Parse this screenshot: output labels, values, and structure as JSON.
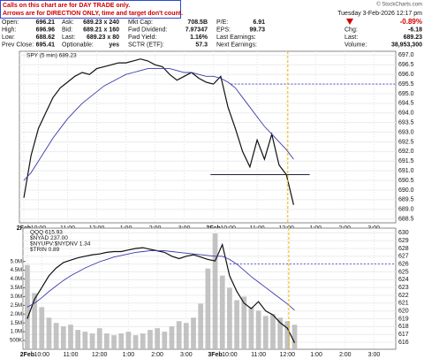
{
  "notice": [
    "Calls on this chart are for DAY TRADE only.",
    "Arrows are for DIRECTION ONLY, time and target don't count."
  ],
  "header": {
    "copyright": "© StockCharts.com",
    "datetime": "Tuesday 3-Feb-2026 12:17 pm",
    "change_pct": "-0.89%",
    "rows": [
      [
        [
          "Open:",
          "696.21"
        ],
        [
          "Ask:",
          "689.23 x 240"
        ],
        [
          "Mkt Cap:",
          "708.5B"
        ],
        [
          "P/E:",
          "6.91"
        ]
      ],
      [
        [
          "High:",
          "696.96"
        ],
        [
          "Bid:",
          "689.21 x 160"
        ],
        [
          "Fwd Dividend:",
          "7.97347"
        ],
        [
          "EPS:",
          "99.73"
        ],
        [
          "Chg:",
          "-6.18"
        ]
      ],
      [
        [
          "Low:",
          "688.62"
        ],
        [
          "Last:",
          "689.23 x 80"
        ],
        [
          "Fwd Yield:",
          "1.16%"
        ],
        [
          "Last Earnings:"
        ],
        [
          "Last:",
          "689.23"
        ]
      ],
      [
        [
          "Prev Close:",
          "695.41"
        ],
        [
          "Optionable:",
          "yes"
        ],
        [
          "SCTR (ETF):",
          "57.3"
        ],
        [
          "Next Earnings:"
        ],
        [
          "Volume:",
          "38,953,300"
        ]
      ]
    ]
  },
  "chart_data": [
    {
      "type": "line",
      "x": [
        0,
        0.25,
        0.5,
        0.75,
        1,
        1.25,
        1.5,
        1.75,
        2,
        2.25,
        2.5,
        2.75,
        3,
        3.25,
        3.5,
        3.75,
        4,
        4.25,
        4.5,
        4.75,
        5,
        5.25,
        5.5,
        5.75,
        6,
        6.25,
        6.5,
        6.75,
        7,
        7.25,
        7.5,
        7.75,
        8,
        8.25,
        8.5,
        8.75,
        9,
        9.25
      ],
      "series": [
        {
          "name": "SPY (5 min) 689.23",
          "color": "#111111",
          "values": [
            689.6,
            691.8,
            693.2,
            694.0,
            694.8,
            695.3,
            695.6,
            695.9,
            696.1,
            696.0,
            696.3,
            696.4,
            696.5,
            696.6,
            696.6,
            696.7,
            696.8,
            696.7,
            696.5,
            696.4,
            696.0,
            695.7,
            695.9,
            696.1,
            695.8,
            695.6,
            695.5,
            695.9,
            694.3,
            693.2,
            692.0,
            691.2,
            692.6,
            691.6,
            692.9,
            691.3,
            690.8,
            689.23
          ]
        },
        {
          "color": "#3a3aa8",
          "values": [
            690.5,
            690.9,
            691.5,
            692.1,
            692.7,
            693.2,
            693.7,
            694.1,
            694.5,
            694.8,
            695.1,
            695.4,
            695.6,
            695.8,
            696.0,
            696.1,
            696.2,
            696.3,
            696.3,
            696.3,
            696.3,
            696.2,
            696.1,
            696.1,
            696.0,
            695.9,
            695.9,
            695.8,
            695.6,
            695.3,
            694.8,
            694.3,
            693.8,
            693.3,
            692.9,
            692.5,
            692.1,
            691.6
          ]
        }
      ],
      "xlim": [
        -0.15,
        12.75
      ],
      "xticks": [
        {
          "value": 0,
          "label": "2Feb"
        },
        {
          "value": 0.5,
          "label": "10:00"
        },
        {
          "value": 1.5,
          "label": "11:00"
        },
        {
          "value": 2.5,
          "label": "12:00"
        },
        {
          "value": 3.5,
          "label": "1:00"
        },
        {
          "value": 4.5,
          "label": "2:00"
        },
        {
          "value": 5.5,
          "label": "3:00"
        },
        {
          "value": 6.5,
          "label": "3Feb"
        },
        {
          "value": 7,
          "label": "10:00"
        },
        {
          "value": 8,
          "label": "11:00"
        },
        {
          "value": 9,
          "label": "12:00"
        },
        {
          "value": 10,
          "label": "1:00"
        },
        {
          "value": 11,
          "label": "2:00"
        },
        {
          "value": 12,
          "label": "3:00"
        }
      ],
      "ylim": [
        688.3,
        697.2
      ],
      "yticks": [
        {
          "value": 697,
          "label": "697.0"
        },
        696.5,
        {
          "value": 696,
          "label": "696.0"
        },
        695.5,
        {
          "value": 695,
          "label": "695.0"
        },
        694.5,
        {
          "value": 694,
          "label": "694.0"
        },
        693.5,
        {
          "value": 693,
          "label": "693.0"
        },
        692.5,
        {
          "value": 692,
          "label": "692.0"
        },
        691.5,
        {
          "value": 691,
          "label": "691.0"
        },
        690.5,
        {
          "value": 690,
          "label": "690.0"
        },
        689.5,
        {
          "value": 689,
          "label": "689.0"
        },
        688.5
      ],
      "grid": true,
      "hlines": [
        {
          "value": 695.5,
          "x": [
            7.1,
            12.75
          ],
          "color": "#3333cc",
          "style": "dotted"
        },
        {
          "value": 690.8,
          "x": [
            6.4,
            9.8
          ],
          "color": "#222244",
          "style": "solid"
        }
      ],
      "vlines": [
        {
          "value": 9.05,
          "color": "#f0b400"
        }
      ]
    },
    {
      "type": "line",
      "x": [
        0,
        0.25,
        0.5,
        0.75,
        1,
        1.25,
        1.5,
        1.75,
        2,
        2.25,
        2.5,
        2.75,
        3,
        3.25,
        3.5,
        3.75,
        4,
        4.25,
        4.5,
        4.75,
        5,
        5.25,
        5.5,
        5.75,
        6,
        6.25,
        6.5,
        6.75,
        7,
        7.25,
        7.5,
        7.75,
        8,
        8.25,
        8.5,
        8.75,
        9,
        9.25
      ],
      "series": [
        {
          "type": "bar",
          "axis": "y2",
          "color": "#b8b8b8",
          "values": [
            4800000,
            3200000,
            2400000,
            1800000,
            1500000,
            1300000,
            1400000,
            1100000,
            1000000,
            900000,
            1200000,
            900000,
            800000,
            900000,
            1000000,
            800000,
            900000,
            1100000,
            1200000,
            1000000,
            1300000,
            1600000,
            1500000,
            1800000,
            2600000,
            4600000,
            6600000,
            4200000,
            3500000,
            2800000,
            3000000,
            2400000,
            2200000,
            1900000,
            2000000,
            1800000,
            1600000,
            1400000
          ]
        },
        {
          "name": "QQQ 615.93",
          "color": "#111111",
          "values": [
            619.0,
            621.5,
            623.0,
            624.5,
            625.5,
            626.2,
            626.5,
            626.8,
            627.0,
            627.2,
            627.3,
            627.5,
            627.6,
            627.6,
            627.8,
            628.0,
            628.1,
            627.9,
            627.7,
            627.5,
            627.0,
            626.7,
            627.0,
            627.2,
            626.9,
            626.6,
            626.4,
            628.5,
            624.5,
            622.5,
            621.0,
            620.3,
            621.2,
            620.0,
            619.5,
            618.5,
            617.8,
            615.93
          ]
        },
        {
          "color": "#3a3aa8",
          "values": [
            620.5,
            621.0,
            621.7,
            622.5,
            623.2,
            623.9,
            624.5,
            625.0,
            625.5,
            625.9,
            626.3,
            626.6,
            626.9,
            627.1,
            627.3,
            627.5,
            627.6,
            627.7,
            627.7,
            627.7,
            627.6,
            627.5,
            627.4,
            627.3,
            627.2,
            627.1,
            627.0,
            627.0,
            626.6,
            626.0,
            625.2,
            624.4,
            623.7,
            623.0,
            622.3,
            621.6,
            620.9,
            620.1
          ]
        }
      ],
      "indicators": [
        "$NYAD 237.00",
        "$NYUPV:$NYDNV 1.34",
        "$TRIN 0.89"
      ],
      "xlim": [
        -0.15,
        12.75
      ],
      "xticks": [
        {
          "value": 0,
          "label": "2Feb"
        },
        {
          "value": 0.5,
          "label": "10:00"
        },
        {
          "value": 1.5,
          "label": "11:00"
        },
        {
          "value": 2.5,
          "label": "12:00"
        },
        {
          "value": 3.5,
          "label": "1:00"
        },
        {
          "value": 4.5,
          "label": "2:00"
        },
        {
          "value": 5.5,
          "label": "3:00"
        },
        {
          "value": 6.5,
          "label": "3Feb"
        },
        {
          "value": 7,
          "label": "10:00"
        },
        {
          "value": 8,
          "label": "11:00"
        },
        {
          "value": 9,
          "label": "12:00"
        },
        {
          "value": 10,
          "label": "1:00"
        },
        {
          "value": 11,
          "label": "2:00"
        },
        {
          "value": 12,
          "label": "3:00"
        }
      ],
      "ylim": [
        615.1,
        630.6
      ],
      "yticks": [
        616,
        617,
        618,
        619,
        620,
        621,
        622,
        623,
        624,
        625,
        626,
        627,
        628,
        629,
        630
      ],
      "y2lim": [
        0,
        6900000
      ],
      "y2ticks": [
        {
          "value": 500000,
          "label": "500K"
        },
        {
          "value": 1000000,
          "label": "1.0M"
        },
        {
          "value": 1500000,
          "label": "1.5M"
        },
        {
          "value": 2000000,
          "label": "2.0M"
        },
        {
          "value": 2500000,
          "label": "2.5M"
        },
        {
          "value": 3000000,
          "label": "3.0M"
        },
        {
          "value": 3500000,
          "label": "3.5M"
        },
        {
          "value": 4000000,
          "label": "4.0M"
        },
        {
          "value": 4500000,
          "label": "4.5M"
        },
        {
          "value": 5000000,
          "label": "5.0M"
        }
      ],
      "grid": true,
      "hlines": [
        {
          "value": 626,
          "x": [
            7.0,
            12.75
          ],
          "color": "#3333cc",
          "style": "dotted"
        }
      ],
      "vlines": [
        {
          "value": 9.05,
          "color": "#f0b400"
        }
      ]
    }
  ]
}
